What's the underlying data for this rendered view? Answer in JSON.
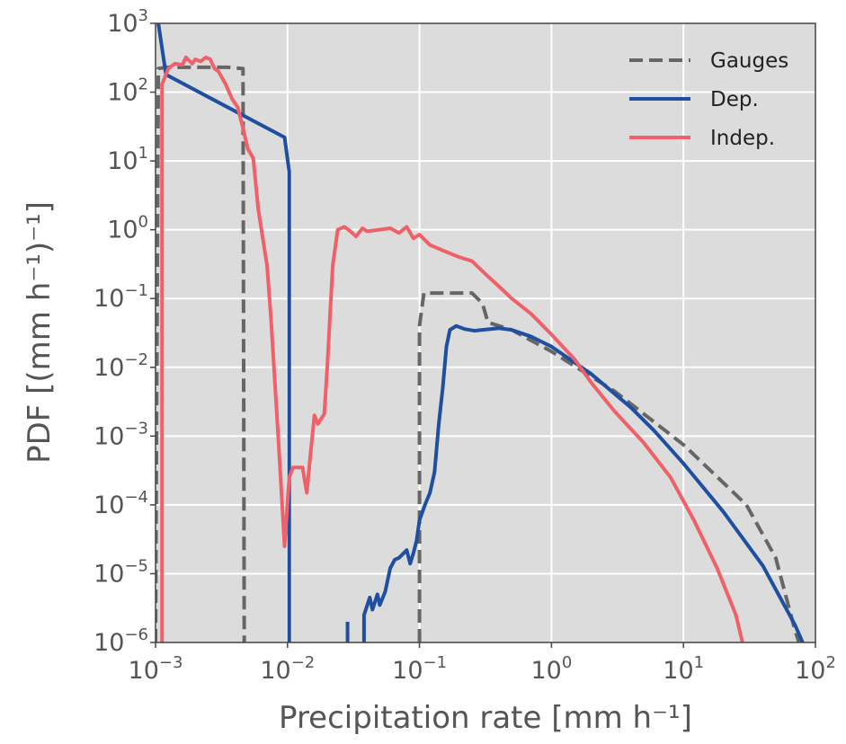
{
  "chart_data": {
    "type": "line",
    "title": "",
    "xlabel": "Precipitation rate [mm h⁻¹]",
    "ylabel": "PDF [(mm h⁻¹)⁻¹]",
    "xscale": "log",
    "yscale": "log",
    "xlim": [
      0.001,
      100
    ],
    "ylim": [
      1e-06,
      1000
    ],
    "xticks": [
      {
        "base": "10",
        "exp": "−3",
        "value": 0.001
      },
      {
        "base": "10",
        "exp": "−2",
        "value": 0.01
      },
      {
        "base": "10",
        "exp": "−1",
        "value": 0.1
      },
      {
        "base": "10",
        "exp": "0",
        "value": 1
      },
      {
        "base": "10",
        "exp": "1",
        "value": 10
      },
      {
        "base": "10",
        "exp": "2",
        "value": 100
      }
    ],
    "yticks": [
      {
        "base": "10",
        "exp": "−6",
        "value": 1e-06
      },
      {
        "base": "10",
        "exp": "−5",
        "value": 1e-05
      },
      {
        "base": "10",
        "exp": "−4",
        "value": 0.0001
      },
      {
        "base": "10",
        "exp": "−3",
        "value": 0.001
      },
      {
        "base": "10",
        "exp": "−2",
        "value": 0.01
      },
      {
        "base": "10",
        "exp": "−1",
        "value": 0.1
      },
      {
        "base": "10",
        "exp": "0",
        "value": 1
      },
      {
        "base": "10",
        "exp": "1",
        "value": 10
      },
      {
        "base": "10",
        "exp": "2",
        "value": 100
      },
      {
        "base": "10",
        "exp": "3",
        "value": 1000
      }
    ],
    "grid": true,
    "legend_position": "top-right",
    "colors": {
      "background": "#dcdcdc",
      "grid": "#ffffff",
      "axes": "#444444"
    },
    "series": [
      {
        "name": "Gauges",
        "color": "#666666",
        "dashed": true,
        "segments": [
          [
            [
              0.001,
              1e-06
            ],
            [
              0.00105,
              220
            ],
            [
              0.0012,
              230
            ],
            [
              0.0035,
              230
            ],
            [
              0.0046,
              220
            ],
            [
              0.0047,
              1e-06
            ]
          ],
          [
            [
              0.1,
              1e-06
            ],
            [
              0.1,
              0.04
            ],
            [
              0.108,
              0.12
            ],
            [
              0.25,
              0.12
            ],
            [
              0.3,
              0.085
            ],
            [
              0.33,
              0.045
            ],
            [
              0.5,
              0.035
            ],
            [
              1,
              0.017
            ],
            [
              3,
              0.0045
            ],
            [
              10,
              0.00075
            ],
            [
              30,
              0.0001
            ],
            [
              50,
              1.7e-05
            ],
            [
              70,
              1.5e-06
            ],
            [
              75,
              1e-06
            ]
          ]
        ]
      },
      {
        "name": "Dep.",
        "color": "#1e4fa0",
        "dashed": false,
        "segments": [
          [
            [
              0.00105,
              1000
            ],
            [
              0.0012,
              180
            ],
            [
              0.0095,
              22
            ],
            [
              0.0103,
              7
            ],
            [
              0.0103,
              1e-06
            ]
          ],
          [
            [
              0.0285,
              1e-06
            ],
            [
              0.0285,
              2e-06
            ]
          ],
          [
            [
              0.038,
              1e-06
            ],
            [
              0.038,
              2.5e-06
            ],
            [
              0.042,
              4.5e-06
            ],
            [
              0.044,
              3e-06
            ],
            [
              0.048,
              5e-06
            ],
            [
              0.05,
              3.5e-06
            ],
            [
              0.055,
              5.5e-06
            ],
            [
              0.06,
              1.2e-05
            ],
            [
              0.065,
              1.6e-05
            ],
            [
              0.07,
              1.7e-05
            ],
            [
              0.08,
              2.2e-05
            ],
            [
              0.085,
              1.4e-05
            ],
            [
              0.09,
              2e-05
            ],
            [
              0.095,
              3e-05
            ],
            [
              0.1,
              6e-05
            ],
            [
              0.11,
              0.0001
            ],
            [
              0.12,
              0.00015
            ],
            [
              0.13,
              0.0003
            ],
            [
              0.14,
              0.0015
            ],
            [
              0.15,
              0.005
            ],
            [
              0.16,
              0.02
            ],
            [
              0.17,
              0.035
            ],
            [
              0.19,
              0.04
            ],
            [
              0.22,
              0.036
            ],
            [
              0.26,
              0.034
            ],
            [
              0.3,
              0.035
            ],
            [
              0.4,
              0.037
            ],
            [
              0.5,
              0.035
            ],
            [
              0.7,
              0.028
            ],
            [
              1,
              0.02
            ],
            [
              2,
              0.008
            ],
            [
              4,
              0.0026
            ],
            [
              6,
              0.0012
            ],
            [
              10,
              0.0004
            ],
            [
              20,
              8e-05
            ],
            [
              40,
              1.3e-05
            ],
            [
              70,
              1.8e-06
            ],
            [
              80,
              1e-06
            ]
          ]
        ]
      },
      {
        "name": "Indep.",
        "color": "#f06068",
        "dashed": false,
        "segments": [
          [
            [
              0.00112,
              1e-06
            ],
            [
              0.00112,
              130
            ],
            [
              0.00125,
              220
            ],
            [
              0.0014,
              260
            ],
            [
              0.0016,
              250
            ],
            [
              0.0017,
              320
            ],
            [
              0.0019,
              260
            ],
            [
              0.002,
              300
            ],
            [
              0.0022,
              280
            ],
            [
              0.0024,
              320
            ],
            [
              0.0026,
              300
            ],
            [
              0.0028,
              220
            ],
            [
              0.003,
              200
            ],
            [
              0.0034,
              130
            ],
            [
              0.0038,
              80
            ],
            [
              0.0042,
              60
            ],
            [
              0.0046,
              30
            ],
            [
              0.005,
              15
            ],
            [
              0.0055,
              11
            ],
            [
              0.006,
              2
            ],
            [
              0.007,
              0.3
            ],
            [
              0.0075,
              0.05
            ],
            [
              0.0085,
              0.001
            ],
            [
              0.0095,
              2.5e-05
            ],
            [
              0.0103,
              0.00025
            ],
            [
              0.011,
              0.00035
            ],
            [
              0.013,
              0.00035
            ],
            [
              0.014,
              0.00015
            ],
            [
              0.015,
              0.0006
            ],
            [
              0.016,
              0.002
            ],
            [
              0.017,
              0.0015
            ],
            [
              0.019,
              0.0021
            ],
            [
              0.02,
              0.01
            ],
            [
              0.022,
              0.3
            ],
            [
              0.024,
              1
            ],
            [
              0.027,
              1.1
            ],
            [
              0.03,
              0.95
            ],
            [
              0.033,
              0.8
            ],
            [
              0.037,
              1.05
            ],
            [
              0.04,
              0.95
            ],
            [
              0.05,
              1
            ],
            [
              0.06,
              1.05
            ],
            [
              0.07,
              0.9
            ],
            [
              0.08,
              1.1
            ],
            [
              0.09,
              0.75
            ],
            [
              0.1,
              0.85
            ],
            [
              0.12,
              0.6
            ],
            [
              0.15,
              0.5
            ],
            [
              0.2,
              0.4
            ],
            [
              0.25,
              0.35
            ],
            [
              0.3,
              0.25
            ],
            [
              0.33,
              0.21
            ],
            [
              0.4,
              0.15
            ],
            [
              0.5,
              0.1
            ],
            [
              0.7,
              0.06
            ],
            [
              1,
              0.03
            ],
            [
              1.5,
              0.013
            ],
            [
              2,
              0.006
            ],
            [
              3,
              0.0023
            ],
            [
              5,
              0.0008
            ],
            [
              8,
              0.00025
            ],
            [
              12,
              6e-05
            ],
            [
              18,
              1.2e-05
            ],
            [
              25,
              2.5e-06
            ],
            [
              28,
              1e-06
            ]
          ],
          [
            [
              0.00113,
              1e-06
            ],
            [
              0.00113,
              1e-06
            ]
          ]
        ]
      }
    ]
  }
}
